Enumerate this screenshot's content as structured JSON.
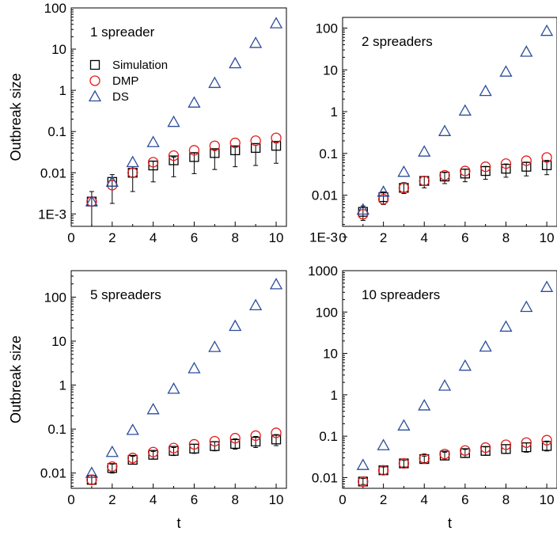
{
  "colors": {
    "simulation": "#000000",
    "dmp": "#e41a1c",
    "ds": "#2b4c9b"
  },
  "legend": {
    "items": [
      "Simulation",
      "DMP",
      "DS"
    ],
    "placement": "left, under title of first panel"
  },
  "chart_data": [
    {
      "type": "scatter",
      "title": "1 spreader",
      "xlabel": "",
      "ylabel": "Outbreak size",
      "xlim": [
        0,
        10.5
      ],
      "ylim": [
        0.0005,
        100
      ],
      "yscale": "log",
      "xticks": [
        "0",
        "2",
        "4",
        "6",
        "8",
        "10"
      ],
      "yticks": [
        "1E-3",
        "0.01",
        "0.1",
        "1",
        "10",
        "100"
      ],
      "x": [
        1,
        2,
        3,
        4,
        5,
        6,
        7,
        8,
        9,
        10
      ],
      "series": [
        {
          "name": "Simulation",
          "marker": "square",
          "values": [
            0.002,
            0.006,
            0.01,
            0.015,
            0.02,
            0.024,
            0.03,
            0.035,
            0.04,
            0.045
          ],
          "err_low": [
            0.0005,
            0.0018,
            0.0035,
            0.006,
            0.008,
            0.0095,
            0.012,
            0.014,
            0.015,
            0.017
          ],
          "err_high": [
            0.0035,
            0.009,
            0.014,
            0.019,
            0.024,
            0.03,
            0.036,
            0.042,
            0.047,
            0.053
          ]
        },
        {
          "name": "DMP",
          "marker": "circle",
          "values": [
            0.002,
            0.005,
            0.01,
            0.018,
            0.026,
            0.035,
            0.045,
            0.053,
            0.06,
            0.07
          ]
        },
        {
          "name": "DS",
          "marker": "triangle",
          "values": [
            0.002,
            0.006,
            0.018,
            0.055,
            0.17,
            0.5,
            1.5,
            4.5,
            14,
            42
          ]
        }
      ]
    },
    {
      "type": "scatter",
      "title": "2 spreaders",
      "xlabel": "",
      "ylabel": "",
      "xlim": [
        0,
        10.5
      ],
      "ylim": [
        0.0018,
        180
      ],
      "yscale": "log",
      "xticks": [
        "0",
        "2",
        "4",
        "6",
        "8",
        "10"
      ],
      "yticks": [
        "1E-3",
        "0.01",
        "0.1",
        "1",
        "10",
        "100"
      ],
      "x": [
        1,
        2,
        3,
        4,
        5,
        6,
        7,
        8,
        9,
        10
      ],
      "series": [
        {
          "name": "Simulation",
          "marker": "square",
          "values": [
            0.004,
            0.009,
            0.015,
            0.022,
            0.028,
            0.033,
            0.038,
            0.043,
            0.048,
            0.052
          ],
          "err_low": [
            0.0025,
            0.006,
            0.011,
            0.015,
            0.019,
            0.021,
            0.024,
            0.027,
            0.029,
            0.031
          ],
          "err_high": [
            0.0055,
            0.012,
            0.02,
            0.028,
            0.035,
            0.042,
            0.049,
            0.056,
            0.062,
            0.068
          ]
        },
        {
          "name": "DMP",
          "marker": "circle",
          "values": [
            0.0035,
            0.008,
            0.015,
            0.022,
            0.03,
            0.038,
            0.048,
            0.057,
            0.067,
            0.08
          ]
        },
        {
          "name": "DS",
          "marker": "triangle",
          "values": [
            0.0045,
            0.012,
            0.036,
            0.11,
            0.34,
            1.05,
            3.1,
            9,
            27,
            85
          ]
        }
      ]
    },
    {
      "type": "scatter",
      "title": "5 spreaders",
      "xlabel": "t",
      "ylabel": "Outbreak size",
      "xlim": [
        0,
        10.5
      ],
      "ylim": [
        0.0045,
        400
      ],
      "yscale": "log",
      "xticks": [
        "0",
        "2",
        "4",
        "6",
        "8",
        "10"
      ],
      "yticks": [
        "0.01",
        "0.1",
        "1",
        "10",
        "100"
      ],
      "x": [
        1,
        2,
        3,
        4,
        5,
        6,
        7,
        8,
        9,
        10
      ],
      "series": [
        {
          "name": "Simulation",
          "marker": "square",
          "values": [
            0.007,
            0.013,
            0.02,
            0.026,
            0.032,
            0.036,
            0.041,
            0.046,
            0.052,
            0.058
          ],
          "err_low": [
            0.0055,
            0.01,
            0.016,
            0.021,
            0.025,
            0.028,
            0.032,
            0.035,
            0.038,
            0.042
          ],
          "err_high": [
            0.009,
            0.016,
            0.024,
            0.031,
            0.038,
            0.045,
            0.052,
            0.06,
            0.068,
            0.075
          ]
        },
        {
          "name": "DMP",
          "marker": "circle",
          "values": [
            0.007,
            0.014,
            0.022,
            0.03,
            0.037,
            0.045,
            0.053,
            0.062,
            0.071,
            0.082
          ]
        },
        {
          "name": "DS",
          "marker": "triangle",
          "values": [
            0.01,
            0.03,
            0.095,
            0.28,
            0.82,
            2.4,
            7.3,
            22,
            65,
            195
          ]
        }
      ]
    },
    {
      "type": "scatter",
      "title": "10 spreaders",
      "xlabel": "t",
      "ylabel": "",
      "xlim": [
        0,
        10.5
      ],
      "ylim": [
        0.0055,
        1000
      ],
      "yscale": "log",
      "xticks": [
        "0",
        "2",
        "4",
        "6",
        "8",
        "10"
      ],
      "yticks": [
        "0.01",
        "0.1",
        "1",
        "10",
        "100",
        "1000"
      ],
      "x": [
        1,
        2,
        3,
        4,
        5,
        6,
        7,
        8,
        9,
        10
      ],
      "series": [
        {
          "name": "Simulation",
          "marker": "square",
          "values": [
            0.008,
            0.015,
            0.022,
            0.028,
            0.034,
            0.039,
            0.044,
            0.049,
            0.054,
            0.058
          ],
          "err_low": [
            0.0068,
            0.012,
            0.018,
            0.023,
            0.027,
            0.031,
            0.035,
            0.038,
            0.041,
            0.044
          ],
          "err_high": [
            0.0095,
            0.018,
            0.026,
            0.033,
            0.041,
            0.048,
            0.055,
            0.062,
            0.069,
            0.076
          ]
        },
        {
          "name": "DMP",
          "marker": "circle",
          "values": [
            0.008,
            0.015,
            0.022,
            0.029,
            0.037,
            0.045,
            0.053,
            0.062,
            0.07,
            0.08
          ]
        },
        {
          "name": "DS",
          "marker": "triangle",
          "values": [
            0.02,
            0.06,
            0.18,
            0.55,
            1.65,
            5,
            14.5,
            44,
            132,
            400
          ]
        }
      ]
    }
  ]
}
